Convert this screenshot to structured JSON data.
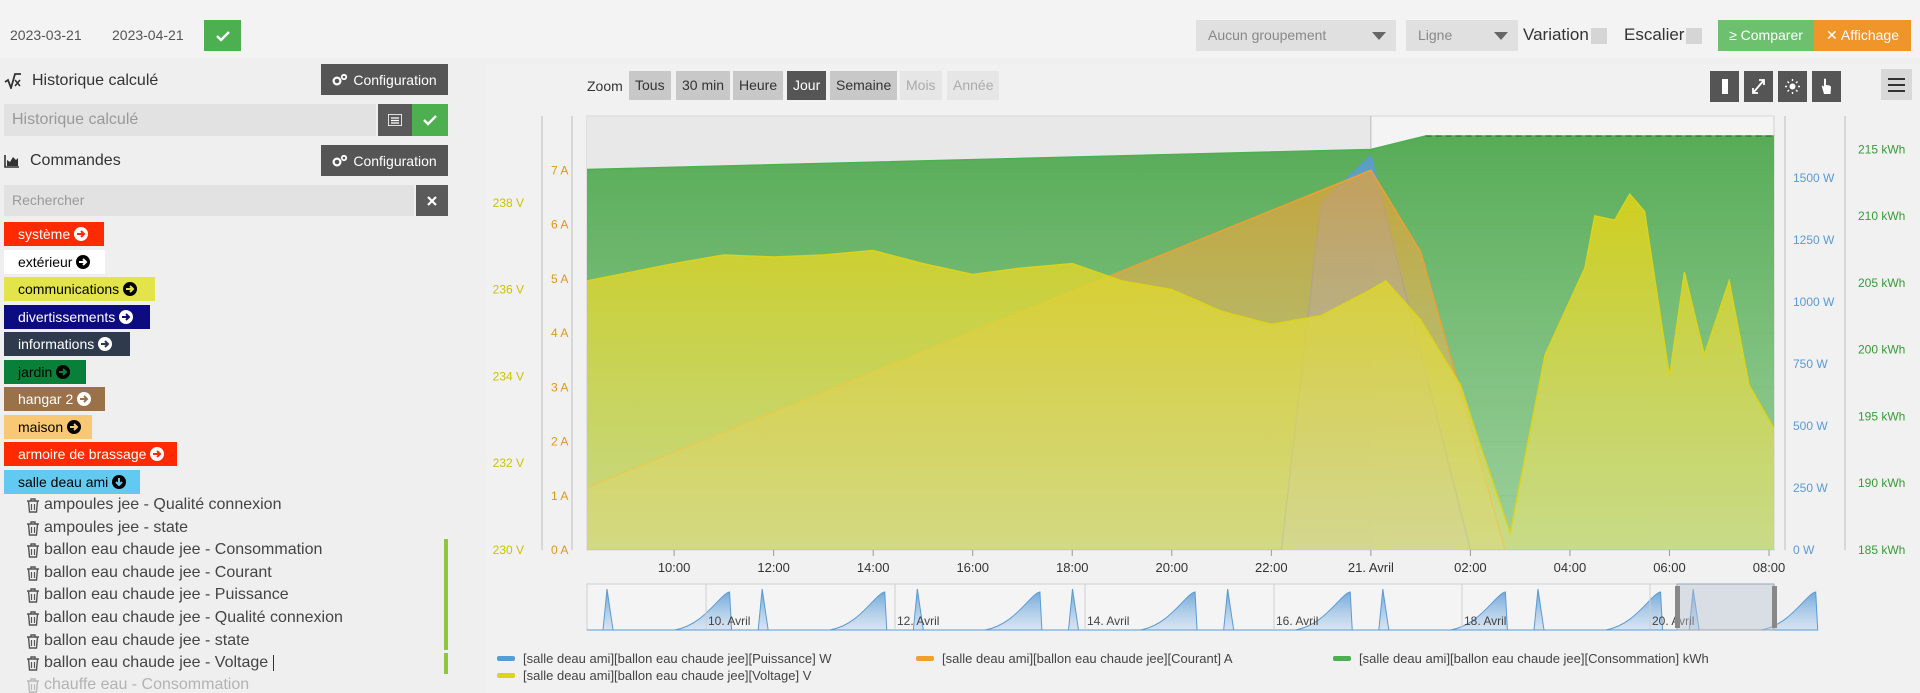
{
  "topbar": {
    "date_start": "2023-03-21",
    "date_end": "2023-04-21",
    "grouping_select": "Aucun groupement",
    "type_select": "Ligne",
    "variation_label": "Variation",
    "escalier_label": "Escalier",
    "compare_label": "≥ Comparer",
    "display_label": "✕ Affichage"
  },
  "left": {
    "history": {
      "title": "Historique calculé",
      "config_label": "Configuration",
      "input_placeholder": "Historique calculé"
    },
    "commands": {
      "title": "Commandes",
      "config_label": "Configuration",
      "search_placeholder": "Rechercher"
    },
    "tags": [
      {
        "label": "système",
        "bg": "#ff2a00",
        "fg": "#ffffff"
      },
      {
        "label": "extérieur",
        "bg": "#ffffff",
        "fg": "#000000"
      },
      {
        "label": "communications",
        "bg": "#e3e34a",
        "fg": "#000000"
      },
      {
        "label": "divertissements",
        "bg": "#0c0b7f",
        "fg": "#ffffff"
      },
      {
        "label": "informations",
        "bg": "#2f3b4d",
        "fg": "#ffffff"
      },
      {
        "label": "jardin",
        "bg": "#08803a",
        "fg": "#000000"
      },
      {
        "label": "hangar 2",
        "bg": "#9a7148",
        "fg": "#ffffff"
      },
      {
        "label": "maison",
        "bg": "#f9c874",
        "fg": "#000000"
      },
      {
        "label": "armoire de brassage",
        "bg": "#ff2a00",
        "fg": "#ffffff"
      },
      {
        "label": "salle deau ami",
        "bg": "#62c9f1",
        "fg": "#000000"
      }
    ],
    "command_items": [
      "ampoules jee - Qualité connexion",
      "ampoules jee - state",
      "ballon eau chaude jee - Consommation",
      "ballon eau chaude jee - Courant",
      "ballon eau chaude jee - Puissance",
      "ballon eau chaude jee - Qualité connexion",
      "ballon eau chaude jee - state",
      "ballon eau chaude jee - Voltage",
      "chauffe eau - Consommation"
    ]
  },
  "chart": {
    "zoom_label": "Zoom",
    "zoom_buttons": [
      "Tous",
      "30 min",
      "Heure",
      "Jour",
      "Semaine",
      "Mois",
      "Année"
    ],
    "zoom_active": "Jour",
    "zoom_disabled": [
      "Mois",
      "Année"
    ],
    "tool_icons": [
      "column-icon",
      "expand-icon",
      "sun-icon",
      "hand-pointer-icon"
    ]
  },
  "chart_data": {
    "type": "area",
    "x_ticks": [
      "10:00",
      "12:00",
      "14:00",
      "16:00",
      "18:00",
      "20:00",
      "22:00",
      "21. Avril",
      "02:00",
      "04:00",
      "06:00",
      "08:00"
    ],
    "axes": {
      "voltage": {
        "unit": "V",
        "ticks": [
          "230 V",
          "232 V",
          "234 V",
          "236 V",
          "238 V"
        ],
        "range": [
          230,
          240
        ],
        "color": "#c9c300"
      },
      "current": {
        "unit": "A",
        "ticks": [
          "0 A",
          "1 A",
          "2 A",
          "3 A",
          "4 A",
          "5 A",
          "6 A",
          "7 A"
        ],
        "range": [
          0,
          8
        ],
        "color": "#e3951a"
      },
      "power": {
        "unit": "W",
        "ticks": [
          "0 W",
          "250 W",
          "500 W",
          "750 W",
          "1000 W",
          "1250 W",
          "1500 W"
        ],
        "range": [
          0,
          1750
        ],
        "color": "#5b9bd5"
      },
      "energy": {
        "unit": "kWh",
        "ticks": [
          "185 kWh",
          "190 kWh",
          "195 kWh",
          "200 kWh",
          "205 kWh",
          "210 kWh",
          "215 kWh"
        ],
        "range": [
          185,
          217.5
        ],
        "color": "#3a9a3a"
      }
    },
    "series": [
      {
        "name": "[salle deau ami][ballon eau chaude jee][Puissance] W",
        "color": "#5b9bd5",
        "axis": "power",
        "points": [
          [
            8.25,
            0
          ],
          [
            22.2,
            0
          ],
          [
            23.0,
            1400
          ],
          [
            24.0,
            1590
          ],
          [
            26.0,
            0
          ],
          [
            32.1,
            0
          ]
        ]
      },
      {
        "name": "[salle deau ami][ballon eau chaude jee][Courant] A",
        "color": "#f0a030",
        "axis": "current",
        "points": [
          [
            8.25,
            1.15
          ],
          [
            24.0,
            7.0
          ],
          [
            25.0,
            5.5
          ],
          [
            26.7,
            0
          ],
          [
            32.1,
            0
          ]
        ]
      },
      {
        "name": "[salle deau ami][ballon eau chaude jee][Consommation] kWh",
        "color": "#4caf50",
        "axis": "energy",
        "points": [
          [
            8.25,
            213.5
          ],
          [
            24.0,
            215.0
          ],
          [
            25.1,
            216.0
          ],
          [
            32.1,
            216.0
          ]
        ]
      },
      {
        "name": "[salle deau ami][ballon eau chaude jee][Voltage] V",
        "color": "#dcd41a",
        "axis": "voltage",
        "points": [
          [
            8.25,
            236.2
          ],
          [
            10.0,
            236.6
          ],
          [
            11.0,
            236.8
          ],
          [
            12.0,
            236.75
          ],
          [
            13.0,
            236.8
          ],
          [
            14.0,
            236.9
          ],
          [
            15.0,
            236.6
          ],
          [
            16.0,
            236.35
          ],
          [
            17.0,
            236.5
          ],
          [
            18.0,
            236.6
          ],
          [
            19.0,
            236.2
          ],
          [
            20.0,
            236.0
          ],
          [
            21.0,
            235.5
          ],
          [
            22.0,
            235.2
          ],
          [
            23.0,
            235.4
          ],
          [
            24.0,
            236.0
          ],
          [
            24.3,
            236.2
          ],
          [
            25.0,
            235.3
          ],
          [
            25.8,
            233.8
          ],
          [
            26.2,
            232.4
          ],
          [
            26.8,
            230.4
          ],
          [
            27.5,
            234.5
          ],
          [
            28.3,
            236.5
          ],
          [
            28.5,
            237.7
          ],
          [
            28.9,
            237.6
          ],
          [
            29.2,
            238.2
          ],
          [
            29.5,
            237.8
          ],
          [
            30.0,
            234.0
          ],
          [
            30.3,
            236.4
          ],
          [
            30.7,
            234.5
          ],
          [
            31.2,
            236.2
          ],
          [
            31.6,
            233.8
          ],
          [
            32.1,
            232.8
          ]
        ]
      }
    ],
    "navigator_ticks": [
      "10. Avril",
      "12. Avril",
      "14. Avril",
      "16. Avril",
      "18. Avril",
      "20. Avril"
    ]
  }
}
